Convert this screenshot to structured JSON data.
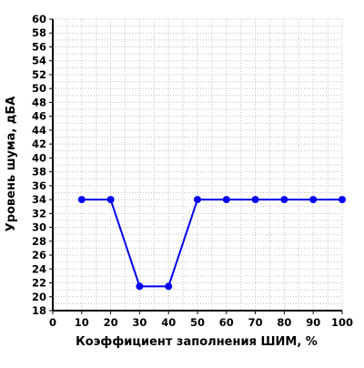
{
  "chart_data": {
    "type": "line",
    "title": "",
    "xlabel": "Коэффициент заполнения ШИМ, %",
    "ylabel": "Уровень шума, дБА",
    "xlim": [
      0,
      100
    ],
    "ylim": [
      18,
      60
    ],
    "x_ticks": [
      0,
      10,
      20,
      30,
      40,
      50,
      60,
      70,
      80,
      90,
      100
    ],
    "y_ticks": [
      18,
      20,
      22,
      24,
      26,
      28,
      30,
      32,
      34,
      36,
      38,
      40,
      42,
      44,
      46,
      48,
      50,
      52,
      54,
      56,
      58,
      60
    ],
    "x_minor_step": 5,
    "y_minor_step": 1,
    "grid": true,
    "legend": "none",
    "series": [
      {
        "color": "#0000ee",
        "marker": "circle",
        "x": [
          10,
          20,
          30,
          40,
          50,
          60,
          70,
          80,
          90,
          100
        ],
        "y": [
          34,
          34,
          21.5,
          21.5,
          34,
          34,
          34,
          34,
          34,
          34
        ]
      }
    ],
    "colors": {
      "axis": "#000000",
      "grid": "#c0c0c0",
      "series": "#0000ee"
    }
  }
}
